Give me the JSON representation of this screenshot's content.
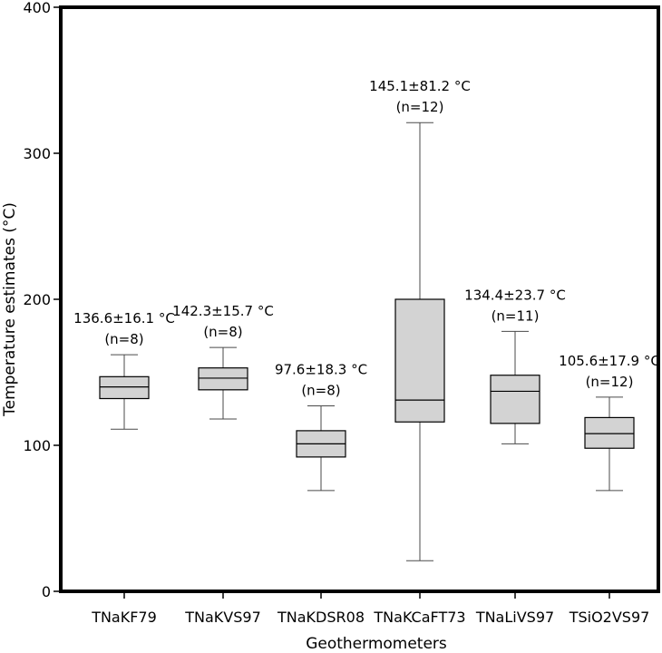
{
  "chart_data": {
    "type": "boxplot",
    "xlabel": "Geothermometers",
    "ylabel": "Temperature estimates (°C)",
    "ylim": [
      0,
      400
    ],
    "yticks": [
      0,
      100,
      200,
      300,
      400
    ],
    "grid": false,
    "categories": [
      "TNaKF79",
      "TNaKVS97",
      "TNaKDSR08",
      "TNaKCaFT73",
      "TNaLiVS97",
      "TSiO2VS97"
    ],
    "boxes": [
      {
        "name": "TNaKF79",
        "whisker_low": 111,
        "q1": 132,
        "median": 140,
        "q3": 147,
        "whisker_high": 162,
        "stat_label": "136.6±16.1 °C",
        "n_label": "(n=8)"
      },
      {
        "name": "TNaKVS97",
        "whisker_low": 118,
        "q1": 138,
        "median": 146,
        "q3": 153,
        "whisker_high": 167,
        "stat_label": "142.3±15.7 °C",
        "n_label": "(n=8)"
      },
      {
        "name": "TNaKDSR08",
        "whisker_low": 69,
        "q1": 92,
        "median": 101,
        "q3": 110,
        "whisker_high": 127,
        "stat_label": "97.6±18.3 °C",
        "n_label": "(n=8)"
      },
      {
        "name": "TNaKCaFT73",
        "whisker_low": 21,
        "q1": 116,
        "median": 131,
        "q3": 200,
        "whisker_high": 321,
        "stat_label": "145.1±81.2 °C",
        "n_label": "(n=12)"
      },
      {
        "name": "TNaLiVS97",
        "whisker_low": 101,
        "q1": 115,
        "median": 137,
        "q3": 148,
        "whisker_high": 178,
        "stat_label": "134.4±23.7 °C",
        "n_label": "(n=11)"
      },
      {
        "name": "TSiO2VS97",
        "whisker_low": 69,
        "q1": 98,
        "median": 108,
        "q3": 119,
        "whisker_high": 133,
        "stat_label": "105.6±17.9 °C",
        "n_label": "(n=12)"
      }
    ],
    "box_fill": "#d3d3d3",
    "stroke_color": "#000000"
  }
}
